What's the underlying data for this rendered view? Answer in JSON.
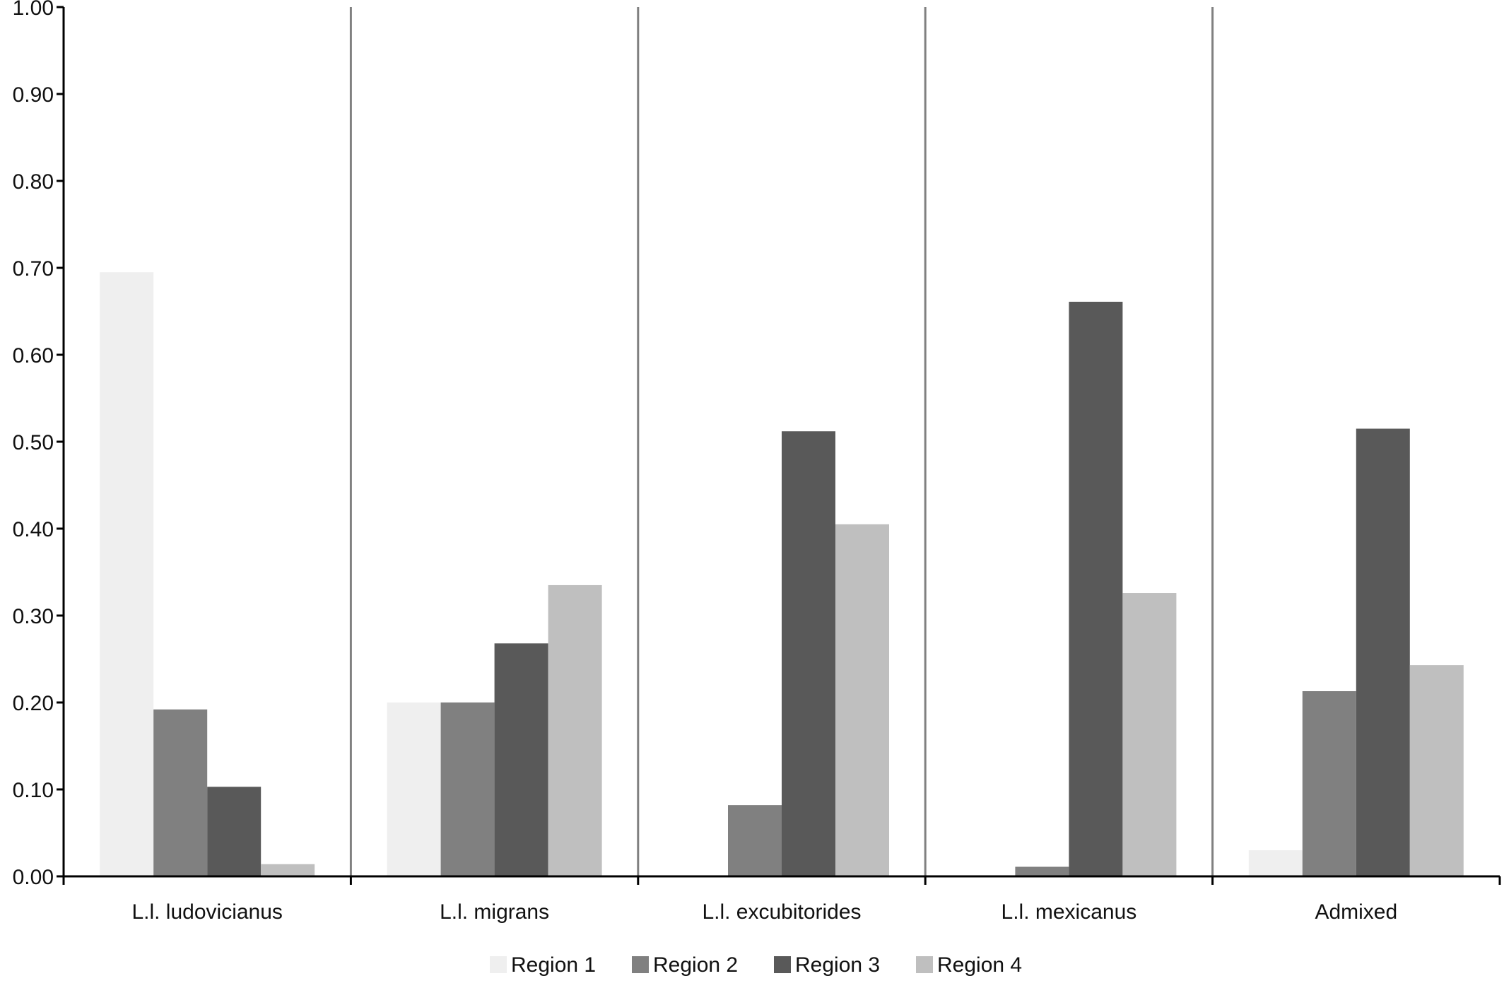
{
  "chart_data": {
    "type": "bar",
    "categories": [
      "L.l. ludovicianus",
      "L.l. migrans",
      "L.l. excubitorides",
      "L.l. mexicanus",
      "Admixed"
    ],
    "series": [
      {
        "name": "Region 1",
        "color": "#efefef",
        "values": [
          0.695,
          0.2,
          0.0,
          0.0,
          0.03
        ]
      },
      {
        "name": "Region 2",
        "color": "#808080",
        "values": [
          0.192,
          0.2,
          0.082,
          0.011,
          0.213
        ]
      },
      {
        "name": "Region 3",
        "color": "#595959",
        "values": [
          0.103,
          0.268,
          0.512,
          0.661,
          0.515
        ]
      },
      {
        "name": "Region 4",
        "color": "#bfbfbf",
        "values": [
          0.014,
          0.335,
          0.405,
          0.326,
          0.243
        ]
      }
    ],
    "ylim": [
      0,
      1.0
    ],
    "yticks": [
      "0.00",
      "0.10",
      "0.20",
      "0.30",
      "0.40",
      "0.50",
      "0.60",
      "0.70",
      "0.80",
      "0.90",
      "1.00"
    ],
    "category_separators": true,
    "grid": false,
    "legend_position": "bottom-center",
    "title": "",
    "xlabel": "",
    "ylabel": ""
  }
}
